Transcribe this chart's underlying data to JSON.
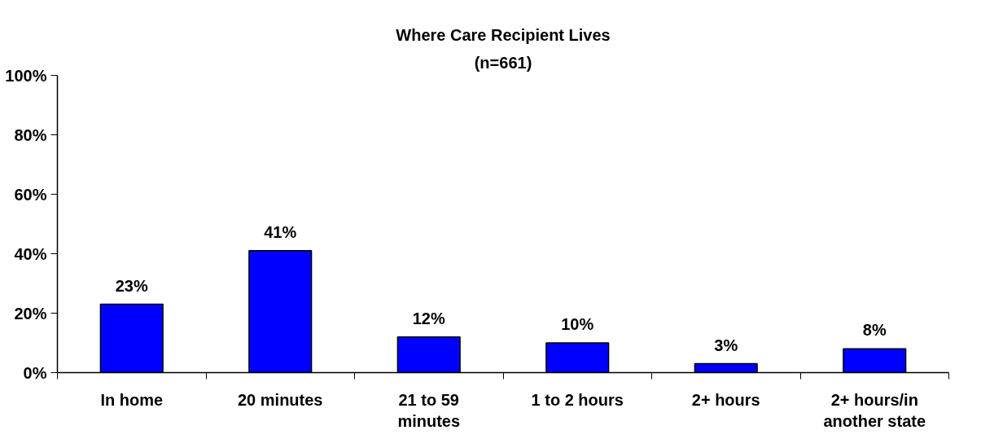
{
  "chart_data": {
    "type": "bar",
    "title": "Where Care Recipient Lives",
    "subtitle": "(n=661)",
    "categories": [
      "In home",
      "20 minutes",
      "21 to 59 minutes",
      "1 to 2 hours",
      "2+ hours",
      "2+ hours/in another state"
    ],
    "values": [
      23,
      41,
      12,
      10,
      3,
      8
    ],
    "value_labels": [
      "23%",
      "41%",
      "12%",
      "10%",
      "3%",
      "8%"
    ],
    "color": "#0000ff",
    "ylim": [
      0,
      100
    ],
    "yticks": [
      {
        "value": 0,
        "label": "0%"
      },
      {
        "value": 20,
        "label": "20%"
      },
      {
        "value": 40,
        "label": "40%"
      },
      {
        "value": 60,
        "label": "60%"
      },
      {
        "value": 80,
        "label": "80%"
      },
      {
        "value": 100,
        "label": "100%"
      }
    ],
    "grid": false
  }
}
